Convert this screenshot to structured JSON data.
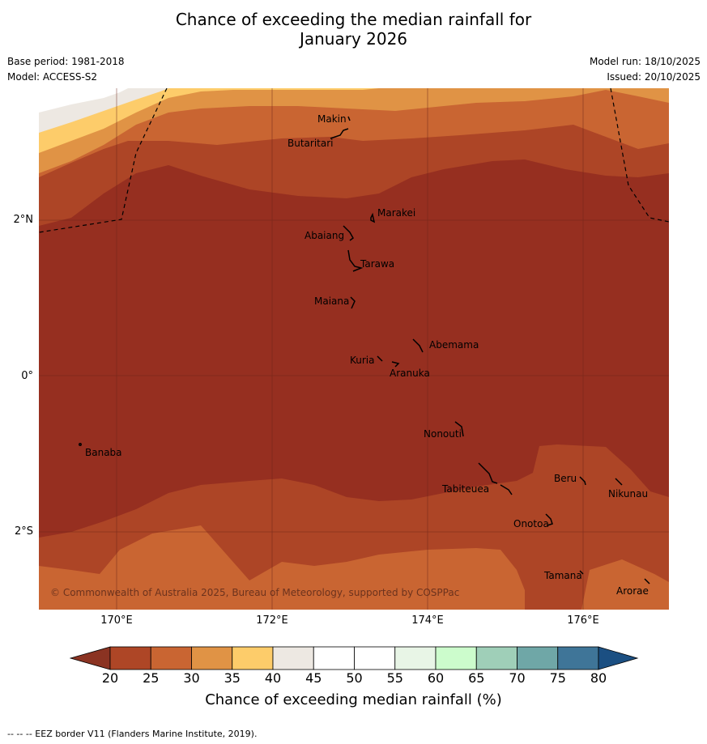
{
  "title_line1": "Chance of exceeding the median rainfall for",
  "title_line2": "January 2026",
  "base_period": "Base period: 1981-2018",
  "model": "Model: ACCESS-S2",
  "model_run": "Model run: 18/10/2025",
  "issued": "Issued: 20/10/2025",
  "copyright": "© Commonwealth of Australia 2025, Bureau of Meteorology, supported by COSPPac",
  "axes": {
    "lon_labels": [
      "170°E",
      "172°E",
      "174°E",
      "176°E"
    ],
    "lat_labels": [
      "2°N",
      "0°",
      "2°S"
    ]
  },
  "places": [
    {
      "name": "Makin"
    },
    {
      "name": "Butaritari"
    },
    {
      "name": "Marakei"
    },
    {
      "name": "Abaiang"
    },
    {
      "name": "Tarawa"
    },
    {
      "name": "Maiana"
    },
    {
      "name": "Abemama"
    },
    {
      "name": "Kuria"
    },
    {
      "name": "Aranuka"
    },
    {
      "name": "Nonouti"
    },
    {
      "name": "Banaba"
    },
    {
      "name": "Beru"
    },
    {
      "name": "Tabiteuea"
    },
    {
      "name": "Nikunau"
    },
    {
      "name": "Onotoa"
    },
    {
      "name": "Tamana"
    },
    {
      "name": "Arorae"
    }
  ],
  "colorbar": {
    "ticks": [
      "20",
      "25",
      "30",
      "35",
      "40",
      "45",
      "50",
      "55",
      "60",
      "65",
      "70",
      "75",
      "80"
    ],
    "colors": {
      "below20": "#8b3322",
      "c20_25": "#ae4626",
      "c25_30": "#c96532",
      "c30_35": "#e09345",
      "c35_40": "#fdcc6a",
      "c40_45": "#ede8e2",
      "c45_50": "#ffffff",
      "c50_55": "#ffffff",
      "c55_60": "#e8f5e6",
      "c60_65": "#ccfccc",
      "c65_70": "#9fcfb8",
      "c70_75": "#6fa7a7",
      "c75_80": "#3f7598",
      "above80": "#1b4f82"
    },
    "label": "Chance of exceeding median rainfall (%)"
  },
  "footer": "--  --  -- EEZ border V11 (Flanders Marine Institute, 2019)."
}
